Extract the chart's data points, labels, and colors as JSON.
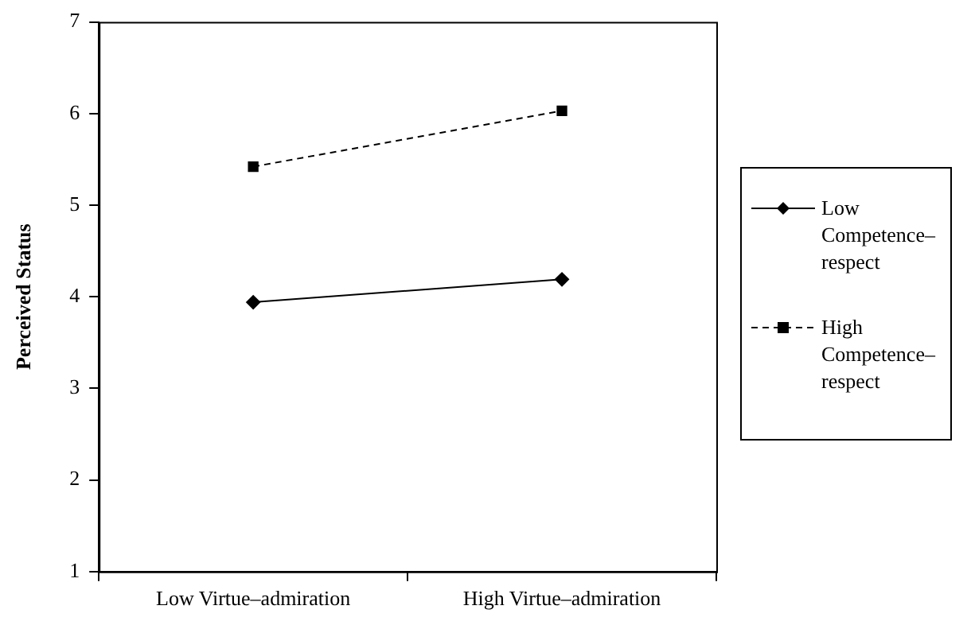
{
  "chart_data": {
    "type": "line",
    "ylabel": "Perceived Status",
    "categories": [
      "Low Virtue–admiration",
      "High Virtue–admiration"
    ],
    "series": [
      {
        "name": "Low Competence–respect",
        "color": "#000000",
        "values": [
          3.94,
          4.19
        ],
        "marker": "diamond",
        "line_style": "solid"
      },
      {
        "name": "High Competence–respect",
        "color": "#000000",
        "values": [
          5.42,
          6.03
        ],
        "marker": "square",
        "line_style": "dashed"
      }
    ],
    "ylim": [
      1,
      7
    ],
    "yticks": [
      1,
      2,
      3,
      4,
      5,
      6,
      7
    ],
    "grid": false,
    "legend": "right"
  }
}
